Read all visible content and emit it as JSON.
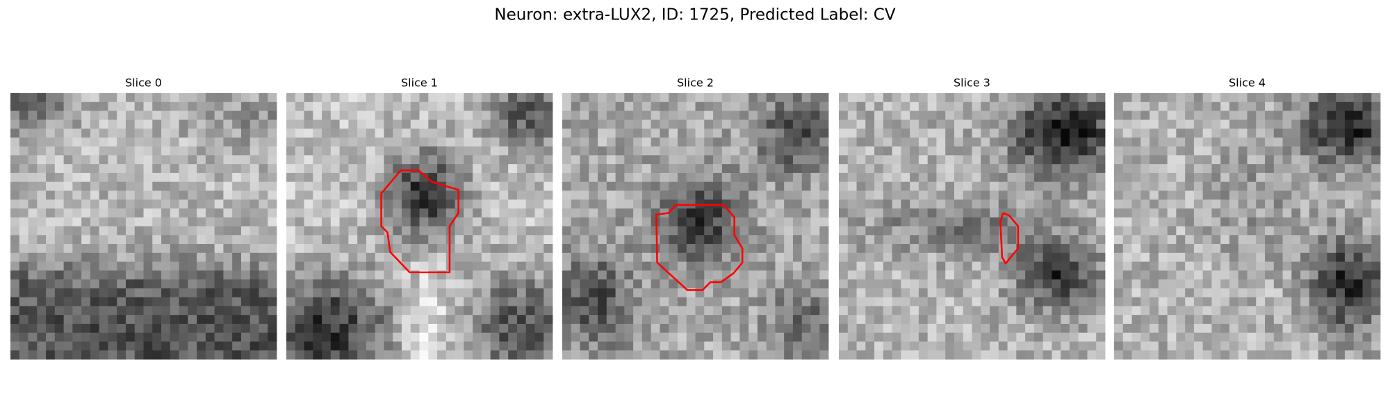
{
  "title": "Neuron: extra-LUX2, ID: 1725, Predicted Label: CV",
  "panels": [
    {
      "title": "Slice 0"
    },
    {
      "title": "Slice 1"
    },
    {
      "title": "Slice 2"
    },
    {
      "title": "Slice 3"
    },
    {
      "title": "Slice 4"
    }
  ]
}
